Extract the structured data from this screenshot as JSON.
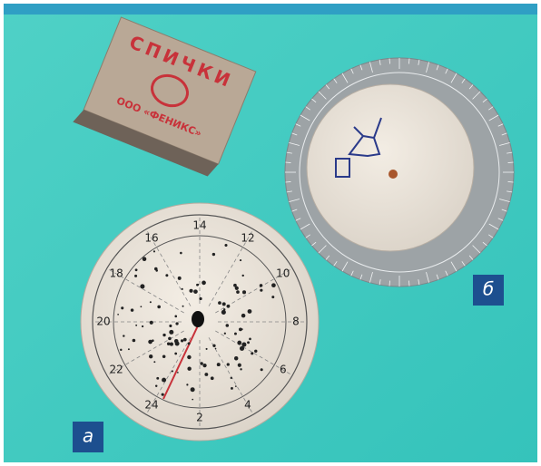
{
  "matchbox": {
    "title": "СПИЧКИ",
    "maker": "ООО «ФЕНИКС»"
  },
  "dial_a": {
    "label": "а",
    "hours": [
      "14",
      "12",
      "10",
      "8",
      "6",
      "4",
      "2",
      "24",
      "22",
      "20",
      "18",
      "16"
    ]
  },
  "dial_b": {
    "label": "б"
  }
}
